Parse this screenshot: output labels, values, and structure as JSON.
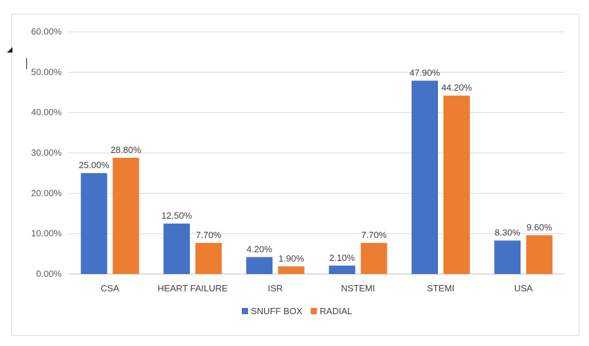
{
  "chart_data": {
    "type": "bar",
    "categories": [
      "CSA",
      "HEART FAILURE",
      "ISR",
      "NSTEMI",
      "STEMI",
      "USA"
    ],
    "series": [
      {
        "name": "SNUFF BOX",
        "values": [
          25.0,
          12.5,
          4.2,
          2.1,
          47.9,
          8.3
        ],
        "labels": [
          "25.00%",
          "12.50%",
          "4.20%",
          "2.10%",
          "47.90%",
          "8.30%"
        ],
        "color": "#4472c4"
      },
      {
        "name": "RADIAL",
        "values": [
          28.8,
          7.7,
          1.9,
          7.7,
          44.2,
          9.6
        ],
        "labels": [
          "28.80%",
          "7.70%",
          "1.90%",
          "7.70%",
          "44.20%",
          "9.60%"
        ],
        "color": "#ed7d31"
      }
    ],
    "ylim": [
      0,
      60
    ],
    "yticks": [
      "0.00%",
      "10.00%",
      "20.00%",
      "30.00%",
      "40.00%",
      "50.00%",
      "60.00%"
    ],
    "title": "",
    "xlabel": "",
    "ylabel": "",
    "grid": true,
    "legend": "bottom"
  }
}
